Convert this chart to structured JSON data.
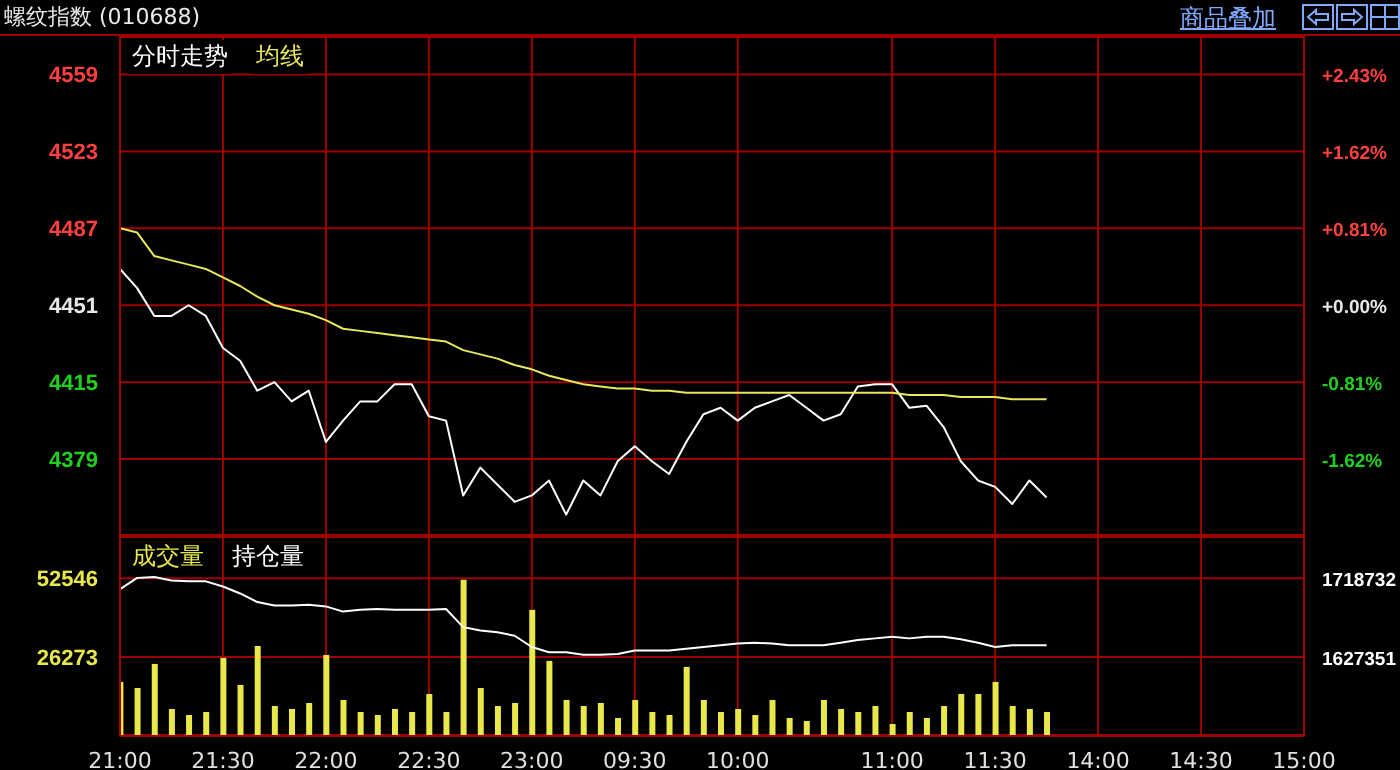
{
  "chart_data": [
    {
      "type": "line",
      "title": "螺纹指数 (010688)",
      "annotations": [
        "商品叠加"
      ],
      "categories": [
        null,
        null,
        null,
        null,
        null,
        null,
        null,
        null,
        null,
        null,
        null,
        null,
        null,
        null,
        null,
        null,
        null,
        null,
        null,
        null,
        null,
        null,
        null,
        null,
        null,
        null,
        null,
        null,
        null,
        null,
        null,
        null,
        null,
        null,
        null,
        null,
        null,
        null,
        null,
        null,
        null,
        null,
        null,
        null,
        null,
        null,
        null,
        null,
        null,
        null,
        null,
        null,
        null,
        null,
        null,
        null,
        null,
        null,
        null,
        null,
        null,
        null,
        null,
        null,
        null,
        null,
        null,
        null,
        null,
        null
      ],
      "series": [
        {
          "name": "分时走势",
          "color": "#ffffff",
          "values": [
            4468,
            4459,
            4446,
            4446,
            4451,
            4446,
            4431,
            4425,
            4411,
            4415,
            4406,
            4411,
            4387,
            4397,
            4406,
            4406,
            4414,
            4414,
            4399,
            4397,
            4362,
            4375,
            4367,
            4359,
            4362,
            4369,
            4353,
            4369,
            4362,
            4378,
            4385,
            4378,
            4372,
            4387,
            4400,
            4403,
            4397,
            4403,
            4406,
            4409,
            4403,
            4397,
            4400,
            4413,
            4414,
            4414,
            4403,
            4404,
            4394,
            4378,
            4369,
            4366,
            4358,
            4369,
            4361,
            null,
            null,
            null,
            null,
            null,
            null,
            null,
            null,
            null,
            null,
            null,
            null,
            null,
            null,
            null
          ]
        },
        {
          "name": "均线",
          "color": "#e8e85a",
          "values": [
            4487,
            4485,
            4474,
            4472,
            4470,
            4468,
            4464,
            4460,
            4455,
            4451,
            4449,
            4447,
            4444,
            4440,
            4439,
            4438,
            4437,
            4436,
            4435,
            4434,
            4430,
            4428,
            4426,
            4423,
            4421,
            4418,
            4416,
            4414,
            4413,
            4412,
            4412,
            4411,
            4411,
            4410,
            4410,
            4410,
            4410,
            4410,
            4410,
            4410,
            4410,
            4410,
            4410,
            4410,
            4410,
            4410,
            4409,
            4409,
            4409,
            4408,
            4408,
            4408,
            4407,
            4407,
            4407,
            null,
            null,
            null,
            null,
            null,
            null,
            null,
            null,
            null,
            null,
            null,
            null,
            null,
            null,
            null
          ]
        }
      ],
      "ylim": [
        4343,
        4577
      ],
      "yticks": [
        4379,
        4415,
        4451,
        4487,
        4523,
        4559
      ],
      "y2lim": [
        -2.43,
        2.83
      ],
      "y2ticks": [
        {
          "value": -1.62,
          "label": "-1.62%"
        },
        {
          "value": -0.81,
          "label": "-0.81%"
        },
        {
          "value": 0,
          "label": "+0.00%"
        },
        {
          "value": 0.81,
          "label": "+0.81%"
        },
        {
          "value": 1.62,
          "label": "+1.62%"
        },
        {
          "value": 2.43,
          "label": "+2.43%"
        }
      ],
      "grid": true,
      "legend": "top left",
      "tick_labels": "y"
    },
    {
      "type": "bar",
      "categories": [
        "21:00",
        null,
        null,
        null,
        null,
        null,
        "21:30",
        null,
        null,
        null,
        null,
        null,
        "22:00",
        null,
        null,
        null,
        null,
        null,
        "22:30",
        null,
        null,
        null,
        null,
        null,
        "23:00",
        null,
        null,
        null,
        null,
        null,
        "09:30",
        null,
        null,
        null,
        null,
        null,
        "10:00",
        null,
        null,
        null,
        null,
        null,
        null,
        null,
        null,
        "11:00",
        null,
        null,
        null,
        null,
        null,
        "11:30",
        null,
        null,
        null,
        null,
        null,
        "14:00",
        null,
        null,
        null,
        null,
        null,
        "14:30",
        null,
        null,
        null,
        null,
        null,
        "15:00"
      ],
      "series": [
        {
          "name": "成交量",
          "color": "#e8e84a",
          "values": [
            18000,
            16000,
            24000,
            9000,
            7000,
            8000,
            26000,
            17000,
            30000,
            10000,
            9000,
            11000,
            27000,
            12000,
            8000,
            7000,
            9000,
            8000,
            14000,
            8000,
            52000,
            16000,
            10000,
            11000,
            42000,
            25000,
            12000,
            10000,
            11000,
            6000,
            12000,
            8000,
            7000,
            23000,
            12000,
            8000,
            9000,
            7000,
            12000,
            6000,
            5000,
            12000,
            9000,
            8000,
            10000,
            4000,
            8000,
            6000,
            10000,
            14000,
            14000,
            18000,
            10000,
            9000,
            8000,
            null,
            null,
            null,
            null,
            null,
            null,
            null,
            null,
            null,
            null,
            null,
            null,
            null,
            null,
            null
          ]
        },
        {
          "name": "持仓量",
          "type": "line",
          "axis": "y2",
          "color": "#ffffff",
          "values": [
            1706000,
            1719000,
            1720000,
            1716000,
            1715000,
            1715000,
            1709000,
            1701000,
            1691000,
            1687000,
            1687000,
            1688000,
            1686000,
            1680000,
            1682000,
            1683000,
            1682000,
            1682000,
            1682000,
            1683000,
            1662000,
            1658000,
            1656000,
            1652000,
            1639000,
            1633000,
            1633000,
            1630000,
            1630000,
            1631000,
            1635000,
            1635000,
            1635000,
            1637000,
            1639000,
            1641000,
            1643000,
            1644000,
            1643000,
            1641000,
            1641000,
            1641000,
            1644000,
            1647000,
            1649000,
            1651000,
            1649000,
            1651000,
            1651000,
            1648000,
            1644000,
            1639000,
            1641000,
            1641000,
            1641000,
            null,
            null,
            null,
            null,
            null,
            null,
            null,
            null,
            null,
            null,
            null,
            null,
            null,
            null,
            null
          ]
        }
      ],
      "ylim": [
        0,
        66600
      ],
      "yticks": [
        26273,
        52546
      ],
      "y2lim": [
        1536000,
        1767500
      ],
      "y2ticks": [
        1627351,
        1718732
      ],
      "grid": true,
      "legend": "top left"
    }
  ]
}
